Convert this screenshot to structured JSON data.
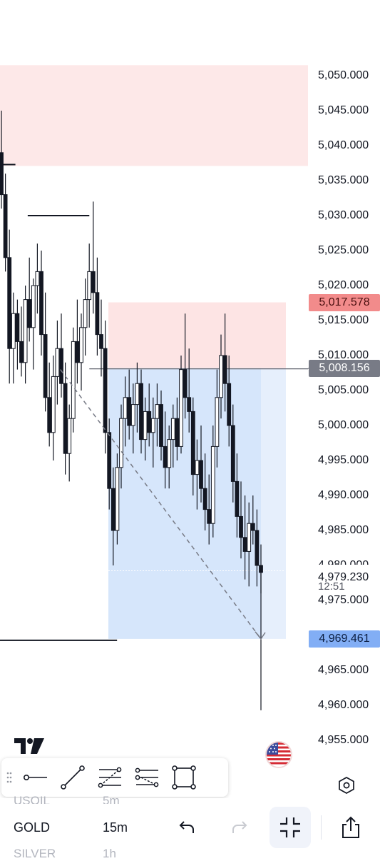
{
  "chart_data": {
    "type": "candlestick",
    "symbol": "GOLD",
    "interval": "15m",
    "y_axis_ticks": [
      "5,050.000",
      "5,045.000",
      "5,040.000",
      "5,035.000",
      "5,030.000",
      "5,025.000",
      "5,020.000",
      "5,015.000",
      "5,010.000",
      "5,005.000",
      "5,000.000",
      "4,995.000",
      "4,990.000",
      "4,985.000",
      "4,980.000",
      "4,975.000",
      "4,970.000",
      "4,965.000",
      "4,960.000",
      "4,955.000"
    ],
    "ylim": [
      4951,
      5061
    ],
    "current_price": "4,979.230",
    "countdown": "12:51",
    "price_tags": [
      {
        "label": "5,017.578",
        "price": 5017.578,
        "style": "red"
      },
      {
        "label": "5,008.156",
        "price": 5008.156,
        "style": "grey"
      },
      {
        "label": "4,969.461",
        "price": 4969.461,
        "style": "blue"
      }
    ],
    "zones": [
      {
        "kind": "supply-zone",
        "top": 5051.5,
        "bottom": 5037.1,
        "color": "#fde8e8"
      },
      {
        "kind": "short-position-stop",
        "top": 5017.6,
        "bottom": 5008.2,
        "color": "#fde4e4"
      },
      {
        "kind": "short-position-target",
        "top": 5008.2,
        "bottom": 4969.5,
        "color": "#d6e6fb"
      }
    ],
    "candles": [
      [
        5039,
        5045,
        5031,
        5033
      ],
      [
        5033,
        5036,
        5022,
        5024
      ],
      [
        5024,
        5028,
        5006,
        5011
      ],
      [
        5011,
        5019,
        5006,
        5016
      ],
      [
        5016,
        5018,
        5008,
        5012
      ],
      [
        5012,
        5017,
        5007,
        5009
      ],
      [
        5009,
        5020,
        5006,
        5018
      ],
      [
        5018,
        5024,
        5012,
        5014
      ],
      [
        5014,
        5021,
        5008,
        5020
      ],
      [
        5020,
        5026,
        5016,
        5022
      ],
      [
        5022,
        5025,
        5010,
        5013
      ],
      [
        5013,
        5019,
        5002,
        5004
      ],
      [
        5004,
        5009,
        4997,
        4999
      ],
      [
        4999,
        5010,
        4995,
        5007
      ],
      [
        5007,
        5015,
        5003,
        5011
      ],
      [
        5011,
        5016,
        5004,
        5006
      ],
      [
        5006,
        5009,
        4993,
        4996
      ],
      [
        4996,
        5003,
        4992,
        5001
      ],
      [
        5001,
        5014,
        4999,
        5012
      ],
      [
        5012,
        5018,
        5006,
        5009
      ],
      [
        5009,
        5016,
        5005,
        5014
      ],
      [
        5014,
        5021,
        5010,
        5018
      ],
      [
        5018,
        5026,
        5014,
        5022
      ],
      [
        5022,
        5032,
        5016,
        5019
      ],
      [
        5019,
        5024,
        5010,
        5013
      ],
      [
        5013,
        5018,
        5007,
        5011
      ],
      [
        5011,
        5015,
        4996,
        4999
      ],
      [
        4999,
        5001,
        4988,
        4991
      ],
      [
        4991,
        4994,
        4980,
        4985
      ],
      [
        4985,
        4996,
        4983,
        4994
      ],
      [
        4994,
        5003,
        4991,
        5001
      ],
      [
        5001,
        5007,
        4997,
        5004
      ],
      [
        5004,
        5008,
        4998,
        5000
      ],
      [
        5000,
        5006,
        4996,
        5003
      ],
      [
        5003,
        5009,
        4999,
        5006
      ],
      [
        5006,
        5008,
        4996,
        4998
      ],
      [
        4998,
        5004,
        4995,
        5002
      ],
      [
        5002,
        5006,
        4997,
        4999
      ],
      [
        4999,
        5004,
        4994,
        5001
      ],
      [
        5001,
        5006,
        4997,
        5003
      ],
      [
        5003,
        5005,
        4995,
        4997
      ],
      [
        4997,
        5002,
        4991,
        4994
      ],
      [
        4994,
        5000,
        4991,
        4998
      ],
      [
        4998,
        5003,
        4994,
        5001
      ],
      [
        5001,
        5004,
        4995,
        4997
      ],
      [
        4997,
        5010,
        4996,
        5008
      ],
      [
        5008,
        5016,
        5001,
        5004
      ],
      [
        5004,
        5011,
        4999,
        5002
      ],
      [
        5002,
        5004,
        4990,
        4993
      ],
      [
        4993,
        4998,
        4988,
        4995
      ],
      [
        4995,
        5000,
        4989,
        4991
      ],
      [
        4991,
        4996,
        4985,
        4988
      ],
      [
        4988,
        4993,
        4983,
        4986
      ],
      [
        4986,
        5000,
        4984,
        4997
      ],
      [
        4997,
        5008,
        4994,
        5004
      ],
      [
        5004,
        5013,
        5001,
        5010
      ],
      [
        5010,
        5016,
        5002,
        5006
      ],
      [
        5006,
        5010,
        4997,
        5000
      ],
      [
        5000,
        5003,
        4989,
        4992
      ],
      [
        4992,
        4996,
        4984,
        4987
      ],
      [
        4987,
        4992,
        4981,
        4984
      ],
      [
        4984,
        4990,
        4978,
        4982
      ],
      [
        4982,
        4989,
        4977,
        4986
      ],
      [
        4986,
        4990,
        4983,
        4985
      ],
      [
        4985,
        4988,
        4977,
        4980
      ],
      [
        4980,
        4983,
        4976,
        4979
      ]
    ],
    "trendline": {
      "from": [
        5008,
        0.4
      ],
      "to": [
        4969.5,
        1.0
      ],
      "style": "dashed"
    },
    "horizontal_lines": [
      {
        "price": 5037.3,
        "from_frac": 0.0,
        "to_frac": 0.05
      },
      {
        "price": 5030.0,
        "from_frac": 0.09,
        "to_frac": 0.29
      },
      {
        "price": 5008.1,
        "from_frac": 0.29,
        "to_frac": 1.0
      },
      {
        "price": 4969.3,
        "from_frac": 0.0,
        "to_frac": 0.38
      }
    ]
  },
  "toolbar": {
    "tools": [
      "drag-handle-icon",
      "horizontal-ray-icon",
      "trend-line-icon",
      "fib-retracement-icon",
      "parallel-channel-icon",
      "rectangle-icon"
    ]
  },
  "bottom_bar": {
    "prev_symbol": "USOIL",
    "prev_interval": "5m",
    "symbol": "GOLD",
    "interval": "15m",
    "next_symbol": "SILVER",
    "next_interval": "1h"
  }
}
